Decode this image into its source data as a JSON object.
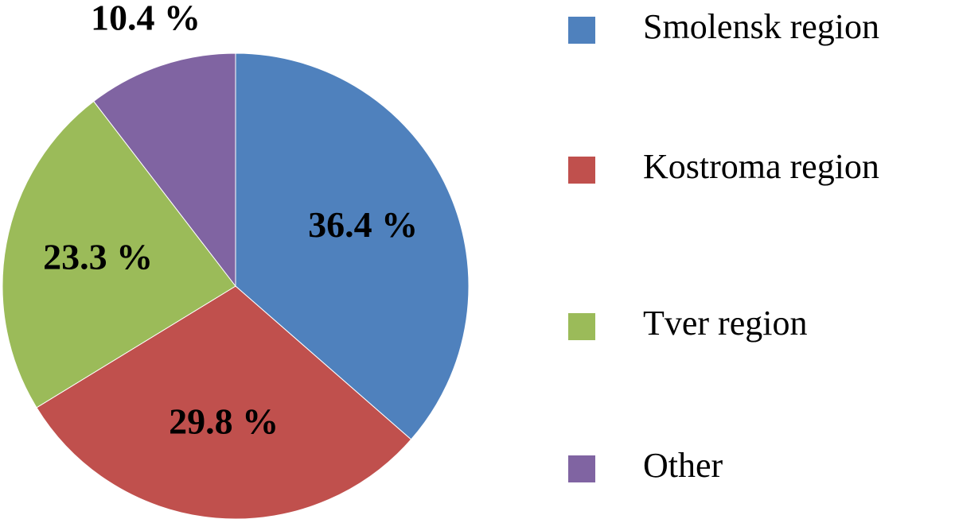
{
  "chart_data": {
    "type": "pie",
    "categories": [
      "Smolensk region",
      "Kostroma region",
      "Tver region",
      "Other"
    ],
    "values": [
      36.4,
      29.8,
      23.3,
      10.4
    ],
    "value_labels": [
      "36.4 %",
      "29.8 %",
      "23.3 %",
      "10.4 %"
    ],
    "colors": [
      "#4f81bd",
      "#c0504d",
      "#9bbb59",
      "#8064a2"
    ],
    "legend": "right"
  }
}
